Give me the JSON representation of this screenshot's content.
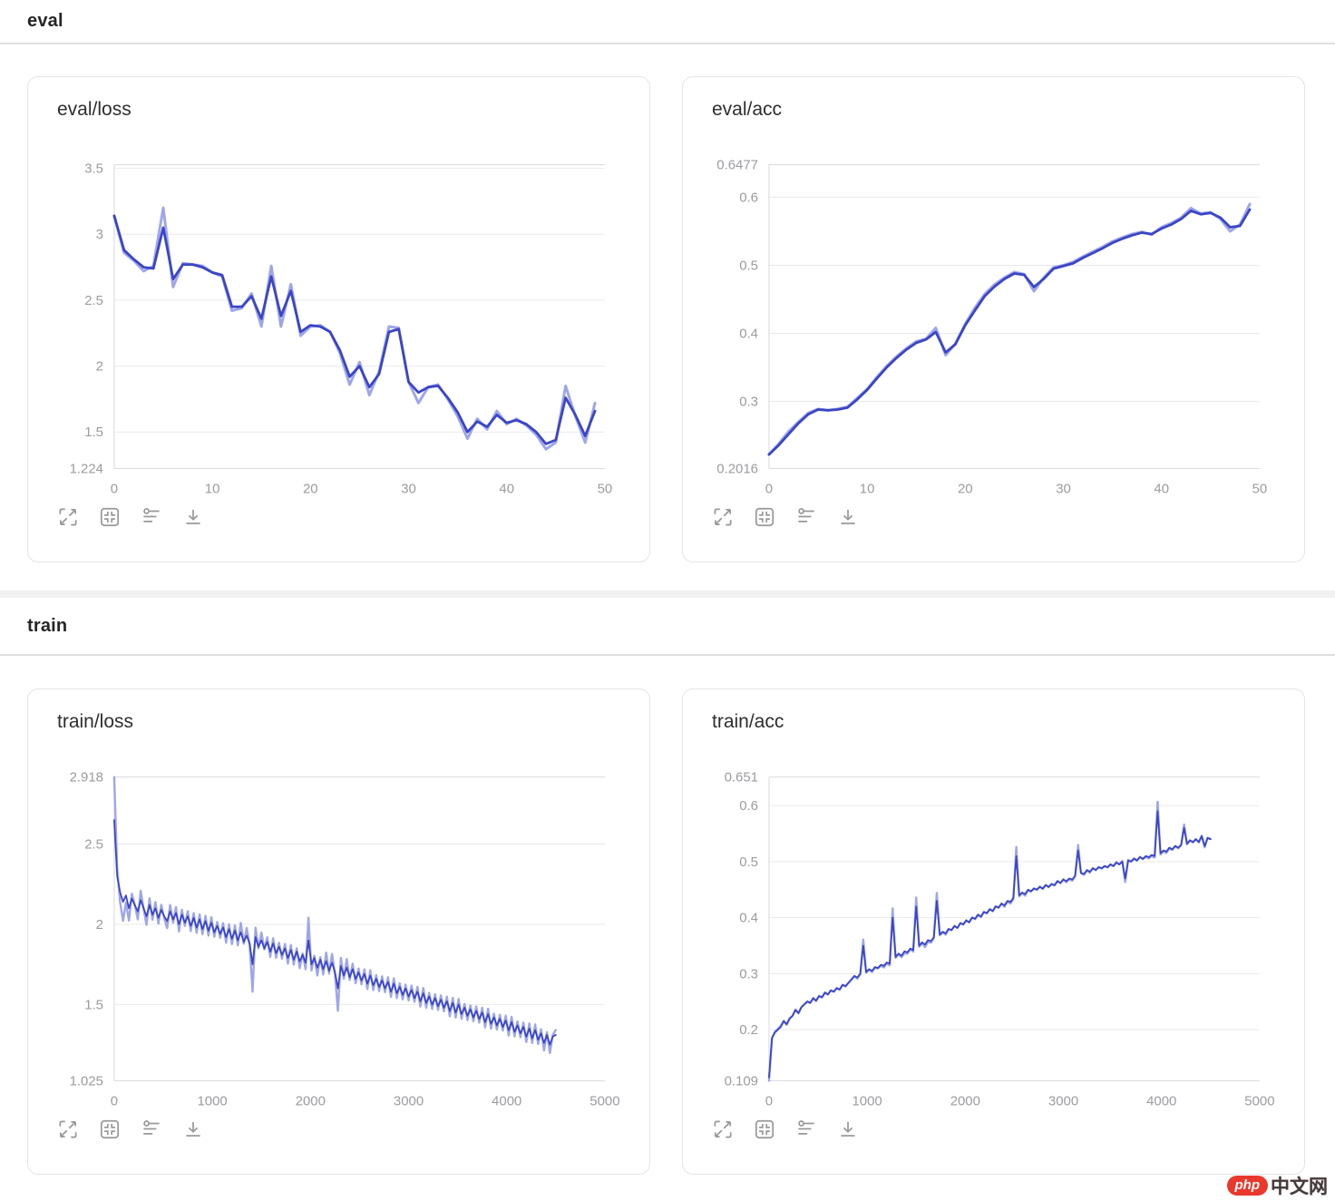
{
  "sections": [
    {
      "title": "eval"
    },
    {
      "title": "train"
    }
  ],
  "watermark": {
    "logo_text": "php",
    "site_text": "中文网"
  },
  "toolbar": {
    "icons": [
      "fullscreen",
      "fit-view",
      "settings-sliders",
      "download"
    ]
  },
  "colors": {
    "line_dark": "#3a45c6",
    "line_light": "#9ea6ea",
    "grid": "#e9e9ea",
    "axis": "#d9d9db",
    "tick_text": "#9b9ba1"
  },
  "chart_data": [
    {
      "id": "eval-loss",
      "type": "line",
      "title": "eval/loss",
      "x_start": 0,
      "x_step": 1,
      "x_max": 50,
      "x_ticks": [
        0,
        10,
        20,
        30,
        40,
        50
      ],
      "x_tick_labels": [
        "0",
        "10",
        "20",
        "30",
        "40",
        "50"
      ],
      "y_min": 1.224,
      "y_max": 3.527,
      "y_min_label": "1.224",
      "y_max_label": "",
      "y_ticks": [
        1.5,
        2,
        2.5,
        3,
        3.5
      ],
      "y_tick_labels": [
        "1.5",
        "2",
        "2.5",
        "3",
        "3.5"
      ],
      "grid": true,
      "legend": "none",
      "series": [
        {
          "name": "eval/loss raw",
          "style": "light",
          "width": 3,
          "values": [
            3.14,
            2.86,
            2.8,
            2.72,
            2.76,
            3.2,
            2.6,
            2.78,
            2.77,
            2.76,
            2.71,
            2.68,
            2.42,
            2.44,
            2.55,
            2.3,
            2.76,
            2.3,
            2.62,
            2.23,
            2.3,
            2.31,
            2.26,
            2.1,
            1.86,
            2.03,
            1.78,
            1.96,
            2.3,
            2.29,
            1.88,
            1.72,
            1.84,
            1.86,
            1.75,
            1.62,
            1.45,
            1.6,
            1.52,
            1.66,
            1.56,
            1.6,
            1.55,
            1.48,
            1.37,
            1.42,
            1.85,
            1.62,
            1.42,
            1.72
          ]
        },
        {
          "name": "eval/loss smoothed",
          "style": "dark",
          "width": 2.8,
          "values": [
            3.14,
            2.88,
            2.81,
            2.75,
            2.74,
            3.05,
            2.66,
            2.77,
            2.77,
            2.75,
            2.71,
            2.69,
            2.45,
            2.45,
            2.53,
            2.36,
            2.68,
            2.38,
            2.57,
            2.26,
            2.31,
            2.3,
            2.26,
            2.12,
            1.92,
            2.0,
            1.84,
            1.94,
            2.26,
            2.28,
            1.88,
            1.8,
            1.84,
            1.85,
            1.76,
            1.65,
            1.5,
            1.58,
            1.54,
            1.63,
            1.57,
            1.59,
            1.56,
            1.5,
            1.41,
            1.44,
            1.76,
            1.63,
            1.47,
            1.66
          ]
        }
      ]
    },
    {
      "id": "eval-acc",
      "type": "line",
      "title": "eval/acc",
      "x_start": 0,
      "x_step": 1,
      "x_max": 50,
      "x_ticks": [
        0,
        10,
        20,
        30,
        40,
        50
      ],
      "x_tick_labels": [
        "0",
        "10",
        "20",
        "30",
        "40",
        "50"
      ],
      "y_min": 0.2016,
      "y_max": 0.6477,
      "y_min_label": "0.2016",
      "y_max_label": "0.6477",
      "y_ticks": [
        0.3,
        0.4,
        0.5,
        0.6
      ],
      "y_tick_labels": [
        "0.3",
        "0.4",
        "0.5",
        "0.6"
      ],
      "grid": true,
      "legend": "none",
      "series": [
        {
          "name": "eval/acc raw",
          "style": "light",
          "width": 3,
          "values": [
            0.222,
            0.238,
            0.256,
            0.27,
            0.283,
            0.289,
            0.287,
            0.289,
            0.292,
            0.305,
            0.318,
            0.336,
            0.352,
            0.366,
            0.378,
            0.388,
            0.392,
            0.408,
            0.368,
            0.385,
            0.414,
            0.438,
            0.458,
            0.472,
            0.482,
            0.49,
            0.487,
            0.462,
            0.482,
            0.497,
            0.5,
            0.505,
            0.513,
            0.52,
            0.527,
            0.535,
            0.541,
            0.546,
            0.549,
            0.545,
            0.556,
            0.562,
            0.57,
            0.584,
            0.576,
            0.578,
            0.568,
            0.55,
            0.56,
            0.59
          ]
        },
        {
          "name": "eval/acc smoothed",
          "style": "dark",
          "width": 2.8,
          "values": [
            0.222,
            0.236,
            0.252,
            0.268,
            0.281,
            0.288,
            0.287,
            0.288,
            0.291,
            0.303,
            0.317,
            0.334,
            0.35,
            0.364,
            0.376,
            0.386,
            0.391,
            0.402,
            0.372,
            0.384,
            0.412,
            0.434,
            0.455,
            0.469,
            0.48,
            0.488,
            0.486,
            0.468,
            0.48,
            0.495,
            0.499,
            0.503,
            0.511,
            0.518,
            0.525,
            0.533,
            0.539,
            0.544,
            0.548,
            0.546,
            0.554,
            0.56,
            0.568,
            0.58,
            0.575,
            0.577,
            0.57,
            0.556,
            0.558,
            0.582
          ]
        }
      ]
    },
    {
      "id": "train-loss",
      "type": "line",
      "title": "train/loss",
      "x_start": 0,
      "x_step": 30,
      "x_max": 5000,
      "x_ticks": [
        0,
        1000,
        2000,
        3000,
        4000,
        5000
      ],
      "x_tick_labels": [
        "0",
        "1000",
        "2000",
        "3000",
        "4000",
        "5000"
      ],
      "y_min": 1.025,
      "y_max": 2.918,
      "y_min_label": "1.025",
      "y_max_label": "2.918",
      "y_ticks": [
        1.5,
        2,
        2.5
      ],
      "y_tick_labels": [
        "1.5",
        "2",
        "2.5"
      ],
      "grid": true,
      "legend": "none",
      "series": [
        {
          "name": "train/loss",
          "style": "dark",
          "width": 1.8,
          "light_overlay_amplify": 2.3,
          "light_width": 2.4,
          "values": [
            2.65,
            2.3,
            2.2,
            2.14,
            2.18,
            2.1,
            2.16,
            2.12,
            2.08,
            2.15,
            2.1,
            2.05,
            2.12,
            2.06,
            2.1,
            2.04,
            2.09,
            2.05,
            2.02,
            2.08,
            2.03,
            2.07,
            2.0,
            2.06,
            2.01,
            2.05,
            1.99,
            2.04,
            1.98,
            2.03,
            1.97,
            2.02,
            1.96,
            2.01,
            1.95,
            1.99,
            1.94,
            1.98,
            1.92,
            1.97,
            1.91,
            1.96,
            1.9,
            1.95,
            1.89,
            1.93,
            1.88,
            1.75,
            1.92,
            1.86,
            1.9,
            1.85,
            1.89,
            1.83,
            1.88,
            1.82,
            1.86,
            1.81,
            1.85,
            1.79,
            1.84,
            1.78,
            1.83,
            1.77,
            1.81,
            1.76,
            1.9,
            1.75,
            1.79,
            1.73,
            1.78,
            1.72,
            1.77,
            1.71,
            1.76,
            1.7,
            1.6,
            1.74,
            1.68,
            1.73,
            1.67,
            1.72,
            1.66,
            1.7,
            1.65,
            1.69,
            1.63,
            1.68,
            1.62,
            1.66,
            1.61,
            1.65,
            1.6,
            1.64,
            1.58,
            1.63,
            1.57,
            1.61,
            1.56,
            1.6,
            1.55,
            1.59,
            1.54,
            1.58,
            1.52,
            1.57,
            1.51,
            1.55,
            1.5,
            1.54,
            1.49,
            1.53,
            1.48,
            1.52,
            1.46,
            1.51,
            1.45,
            1.5,
            1.44,
            1.48,
            1.43,
            1.47,
            1.42,
            1.46,
            1.41,
            1.45,
            1.39,
            1.44,
            1.38,
            1.42,
            1.37,
            1.41,
            1.36,
            1.4,
            1.34,
            1.39,
            1.33,
            1.37,
            1.32,
            1.36,
            1.3,
            1.35,
            1.29,
            1.34,
            1.28,
            1.32,
            1.26,
            1.31,
            1.25,
            1.3,
            1.31
          ]
        }
      ]
    },
    {
      "id": "train-acc",
      "type": "line",
      "title": "train/acc",
      "x_start": 0,
      "x_step": 30,
      "x_max": 5000,
      "x_ticks": [
        0,
        1000,
        2000,
        3000,
        4000,
        5000
      ],
      "x_tick_labels": [
        "0",
        "1000",
        "2000",
        "3000",
        "4000",
        "5000"
      ],
      "y_min": 0.109,
      "y_max": 0.651,
      "y_min_label": "0.109",
      "y_max_label": "0.651",
      "y_ticks": [
        0.2,
        0.3,
        0.4,
        0.5,
        0.6
      ],
      "y_tick_labels": [
        "0.2",
        "0.3",
        "0.4",
        "0.5",
        "0.6"
      ],
      "grid": true,
      "legend": "none",
      "series": [
        {
          "name": "train/acc",
          "style": "dark",
          "width": 1.8,
          "light_overlay_amplify": 1.25,
          "light_width": 2.4,
          "values": [
            0.115,
            0.185,
            0.195,
            0.2,
            0.205,
            0.215,
            0.21,
            0.22,
            0.225,
            0.235,
            0.23,
            0.24,
            0.245,
            0.25,
            0.248,
            0.256,
            0.252,
            0.26,
            0.258,
            0.266,
            0.263,
            0.27,
            0.268,
            0.274,
            0.272,
            0.28,
            0.278,
            0.284,
            0.29,
            0.296,
            0.293,
            0.3,
            0.35,
            0.303,
            0.308,
            0.305,
            0.312,
            0.31,
            0.316,
            0.314,
            0.32,
            0.318,
            0.4,
            0.33,
            0.336,
            0.332,
            0.34,
            0.338,
            0.345,
            0.342,
            0.42,
            0.35,
            0.356,
            0.352,
            0.36,
            0.358,
            0.365,
            0.43,
            0.37,
            0.375,
            0.372,
            0.38,
            0.378,
            0.385,
            0.382,
            0.39,
            0.388,
            0.395,
            0.392,
            0.4,
            0.398,
            0.405,
            0.402,
            0.41,
            0.408,
            0.415,
            0.412,
            0.42,
            0.418,
            0.425,
            0.422,
            0.43,
            0.428,
            0.435,
            0.51,
            0.44,
            0.445,
            0.442,
            0.45,
            0.447,
            0.452,
            0.45,
            0.455,
            0.452,
            0.458,
            0.455,
            0.46,
            0.458,
            0.465,
            0.462,
            0.468,
            0.465,
            0.47,
            0.468,
            0.475,
            0.52,
            0.48,
            0.478,
            0.485,
            0.482,
            0.488,
            0.485,
            0.49,
            0.488,
            0.492,
            0.49,
            0.495,
            0.492,
            0.498,
            0.495,
            0.5,
            0.47,
            0.502,
            0.5,
            0.505,
            0.502,
            0.508,
            0.505,
            0.51,
            0.508,
            0.512,
            0.51,
            0.59,
            0.515,
            0.52,
            0.518,
            0.525,
            0.522,
            0.528,
            0.525,
            0.53,
            0.56,
            0.532,
            0.538,
            0.535,
            0.54,
            0.535,
            0.545,
            0.528,
            0.542,
            0.54
          ]
        }
      ]
    }
  ]
}
